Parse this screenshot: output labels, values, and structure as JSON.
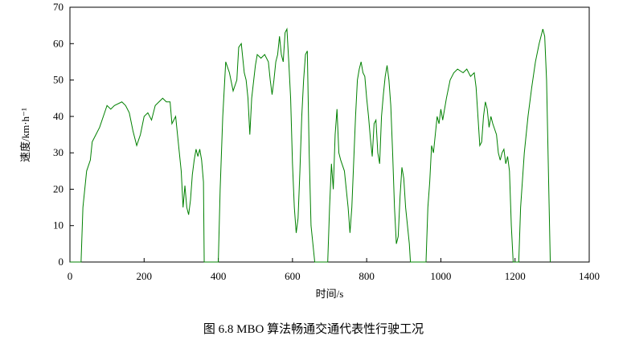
{
  "chart_data": {
    "type": "line",
    "xlabel": "时间/s",
    "ylabel": "速度/km·h⁻¹",
    "caption": "图 6.8 MBO 算法畅通交通代表性行驶工况",
    "xlim": [
      0,
      1400
    ],
    "xticks": [
      0,
      200,
      400,
      600,
      800,
      1000,
      1200,
      1400
    ],
    "ylim": [
      0,
      70
    ],
    "yticks": [
      0,
      10,
      20,
      30,
      40,
      50,
      60,
      70
    ],
    "grid": false,
    "x": [
      0,
      30,
      35,
      45,
      55,
      60,
      70,
      80,
      90,
      100,
      110,
      120,
      140,
      150,
      160,
      170,
      180,
      190,
      200,
      210,
      220,
      230,
      240,
      250,
      260,
      270,
      275,
      285,
      290,
      300,
      305,
      310,
      315,
      320,
      325,
      330,
      335,
      340,
      345,
      350,
      355,
      360,
      362,
      400,
      405,
      412,
      420,
      430,
      440,
      450,
      455,
      462,
      470,
      475,
      480,
      485,
      490,
      500,
      505,
      515,
      525,
      535,
      540,
      545,
      550,
      555,
      560,
      565,
      570,
      575,
      580,
      585,
      590,
      595,
      600,
      605,
      610,
      615,
      620,
      625,
      630,
      635,
      640,
      645,
      650,
      655,
      660,
      695,
      700,
      705,
      710,
      715,
      720,
      725,
      730,
      740,
      750,
      755,
      760,
      770,
      775,
      780,
      785,
      790,
      795,
      800,
      805,
      810,
      815,
      820,
      825,
      830,
      835,
      840,
      845,
      850,
      855,
      860,
      865,
      870,
      875,
      880,
      885,
      890,
      895,
      900,
      905,
      910,
      915,
      918,
      960,
      965,
      970,
      975,
      980,
      985,
      990,
      995,
      1000,
      1005,
      1015,
      1025,
      1035,
      1045,
      1060,
      1070,
      1080,
      1090,
      1095,
      1100,
      1105,
      1110,
      1115,
      1120,
      1125,
      1130,
      1135,
      1140,
      1150,
      1155,
      1160,
      1165,
      1170,
      1175,
      1180,
      1185,
      1190,
      1195,
      1210,
      1215,
      1225,
      1235,
      1245,
      1255,
      1265,
      1270,
      1275,
      1280,
      1285,
      1290,
      1295
    ],
    "series": [
      {
        "color": "#008000",
        "values": [
          0,
          0,
          15,
          25,
          28,
          33,
          35,
          37,
          40,
          43,
          42,
          43,
          44,
          43,
          41,
          36,
          32,
          35,
          40,
          41,
          39,
          43,
          44,
          45,
          44,
          44,
          38,
          40,
          35,
          25,
          15,
          21,
          15,
          13,
          17,
          24,
          28,
          31,
          29,
          31,
          28,
          22,
          0,
          0,
          20,
          40,
          55,
          52,
          47,
          50,
          59,
          60,
          52,
          50,
          45,
          35,
          45,
          54,
          57,
          56,
          57,
          55,
          50,
          46,
          50,
          55,
          57,
          62,
          57,
          55,
          63,
          64,
          55,
          45,
          27,
          15,
          8,
          12,
          25,
          40,
          50,
          57,
          58,
          30,
          10,
          5,
          0,
          0,
          15,
          27,
          20,
          35,
          42,
          30,
          28,
          25,
          15,
          8,
          15,
          40,
          50,
          53,
          55,
          52,
          51,
          45,
          40,
          34,
          29,
          38,
          39,
          30,
          27,
          40,
          46,
          51,
          54,
          50,
          43,
          30,
          15,
          5,
          7,
          18,
          26,
          23,
          15,
          10,
          5,
          0,
          0,
          15,
          22,
          32,
          30,
          35,
          40,
          38,
          42,
          39,
          45,
          50,
          52,
          53,
          52,
          53,
          51,
          52,
          48,
          40,
          32,
          33,
          40,
          44,
          42,
          37,
          40,
          38,
          35,
          30,
          28,
          30,
          31,
          27,
          29,
          25,
          10,
          0,
          0,
          15,
          30,
          40,
          48,
          55,
          60,
          62,
          64,
          62,
          50,
          25,
          0
        ]
      }
    ]
  }
}
